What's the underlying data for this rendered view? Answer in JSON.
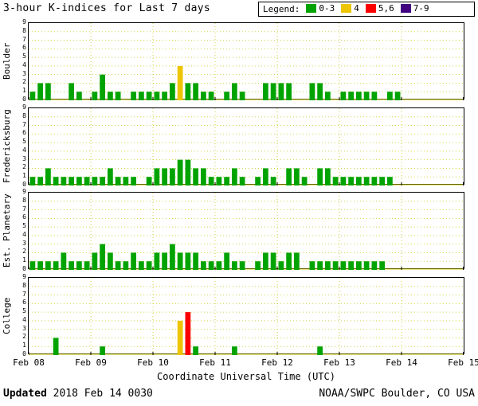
{
  "legend": {
    "label": "Legend:",
    "items": [
      {
        "label": "0-3",
        "color": "#00a300"
      },
      {
        "label": "4",
        "color": "#edc500"
      },
      {
        "label": "5,6",
        "color": "#fb0000"
      },
      {
        "label": "7-9",
        "color": "#400080"
      }
    ]
  },
  "footer": {
    "updated_label": "Updated",
    "updated_value": "2018 Feb 14 0030",
    "source": "NOAA/SWPC Boulder, CO USA"
  },
  "chart_data": {
    "type": "bar",
    "title": "3-hour K-indices for Last 7 days",
    "xlabel": "Coordinate Universal Time (UTC)",
    "x_ticks": [
      "Feb 08",
      "Feb 09",
      "Feb 10",
      "Feb 11",
      "Feb 12",
      "Feb 13",
      "Feb 14",
      "Feb 15"
    ],
    "y_ticks": [
      0,
      1,
      2,
      3,
      4,
      5,
      6,
      7,
      8,
      9
    ],
    "ylim": [
      0,
      9
    ],
    "days": 7,
    "bars_per_day": 8,
    "grid": true,
    "legend_position": "top-right",
    "color_rules": [
      {
        "range": "0-3",
        "color": "#00a300"
      },
      {
        "range": "4",
        "color": "#edc500"
      },
      {
        "range": "5,6",
        "color": "#fb0000"
      },
      {
        "range": "7-9",
        "color": "#400080"
      }
    ],
    "panels": [
      {
        "station": "Boulder",
        "values": [
          1,
          2,
          2,
          0,
          0,
          2,
          1,
          0,
          1,
          3,
          1,
          1,
          0,
          1,
          1,
          1,
          1,
          1,
          2,
          4,
          2,
          2,
          1,
          1,
          0,
          1,
          2,
          1,
          0,
          0,
          2,
          2,
          2,
          2,
          0,
          0,
          2,
          2,
          1,
          0,
          1,
          1,
          1,
          1,
          1,
          0,
          1,
          1,
          0,
          0,
          0,
          0,
          0,
          0,
          0,
          0
        ]
      },
      {
        "station": "Fredericksburg",
        "values": [
          1,
          1,
          2,
          1,
          1,
          1,
          1,
          1,
          1,
          1,
          2,
          1,
          1,
          1,
          0,
          1,
          2,
          2,
          2,
          3,
          3,
          2,
          2,
          1,
          1,
          1,
          2,
          1,
          0,
          1,
          2,
          1,
          0,
          2,
          2,
          1,
          0,
          2,
          2,
          1,
          1,
          1,
          1,
          1,
          1,
          1,
          1,
          0,
          0,
          0,
          0,
          0,
          0,
          0,
          0,
          0
        ]
      },
      {
        "station": "Est. Planetary",
        "values": [
          1,
          1,
          1,
          1,
          2,
          1,
          1,
          1,
          2,
          3,
          2,
          1,
          1,
          2,
          1,
          1,
          2,
          2,
          3,
          2,
          2,
          2,
          1,
          1,
          1,
          2,
          1,
          1,
          0,
          1,
          2,
          2,
          1,
          2,
          2,
          0,
          1,
          1,
          1,
          1,
          1,
          1,
          1,
          1,
          1,
          1,
          0,
          0,
          0,
          0,
          0,
          0,
          0,
          0,
          0,
          0
        ]
      },
      {
        "station": "College",
        "values": [
          0,
          0,
          0,
          2,
          0,
          0,
          0,
          0,
          0,
          1,
          0,
          0,
          0,
          0,
          0,
          0,
          0,
          0,
          0,
          4,
          5,
          1,
          0,
          0,
          0,
          0,
          1,
          0,
          0,
          0,
          0,
          0,
          0,
          0,
          0,
          0,
          0,
          1,
          0,
          0,
          0,
          0,
          0,
          0,
          0,
          0,
          0,
          0,
          0,
          0,
          0,
          0,
          0,
          0,
          0,
          0
        ]
      }
    ]
  }
}
